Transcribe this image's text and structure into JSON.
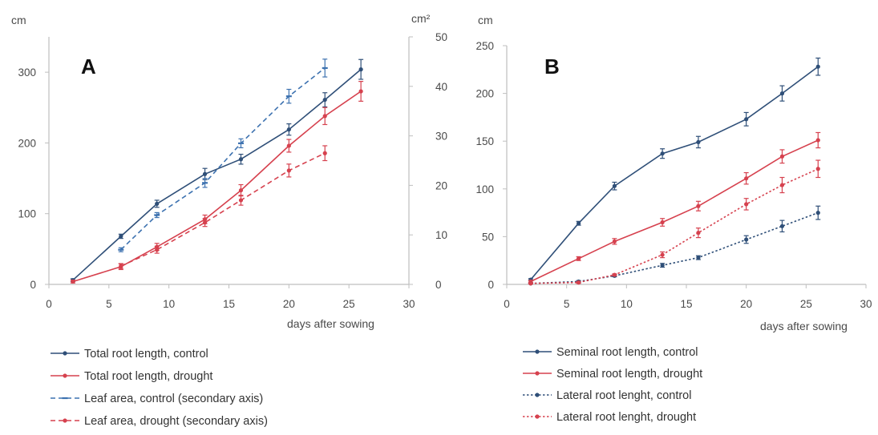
{
  "colors": {
    "control": "#2f4f78",
    "drought": "#d6414e",
    "leaf_control": "#3d72b0",
    "axis": "#bfbfbf",
    "text": "#4a4a4a"
  },
  "chart_data": [
    {
      "type": "line",
      "panel_label": "A",
      "xlabel": "days after sowing",
      "y_unit": "cm",
      "y2_unit": "cm²",
      "xlim": [
        0,
        30
      ],
      "ylim": [
        0,
        350
      ],
      "y2lim": [
        0,
        50
      ],
      "xticks": [
        0,
        5,
        10,
        15,
        20,
        25,
        30
      ],
      "yticks": [
        0,
        100,
        200,
        300
      ],
      "y2ticks": [
        0,
        10,
        20,
        30,
        40,
        50
      ],
      "legend_position": "below",
      "series": [
        {
          "name": "Total root length, control",
          "axis": "primary",
          "style": "solid",
          "color": "#2f4f78",
          "marker": "dot",
          "x": [
            2,
            6,
            9,
            13,
            16,
            20,
            23,
            26
          ],
          "y": [
            6,
            68,
            114,
            156,
            177,
            219,
            261,
            304
          ],
          "err": [
            2,
            3,
            5,
            8,
            7,
            8,
            10,
            14
          ]
        },
        {
          "name": "Total root length, drought",
          "axis": "primary",
          "style": "solid",
          "color": "#d6414e",
          "marker": "dot",
          "x": [
            2,
            6,
            9,
            13,
            16,
            20,
            23,
            26
          ],
          "y": [
            4,
            25,
            53,
            92,
            133,
            196,
            238,
            273
          ],
          "err": [
            2,
            4,
            5,
            6,
            8,
            9,
            12,
            14
          ]
        },
        {
          "name": "Leaf area, control (secondary axis)",
          "axis": "secondary",
          "style": "dashed",
          "color": "#3d72b0",
          "marker": "dash",
          "x": [
            6,
            9,
            13,
            16,
            20,
            23
          ],
          "y": [
            7,
            14,
            20.5,
            28.5,
            38,
            43.7
          ],
          "err": [
            0.4,
            0.5,
            0.9,
            0.9,
            1.4,
            1.8
          ]
        },
        {
          "name": "Leaf area, drought (secondary axis)",
          "axis": "secondary",
          "style": "dashed",
          "color": "#d6414e",
          "marker": "dot",
          "x": [
            6,
            9,
            13,
            16,
            20,
            23
          ],
          "y": [
            3.7,
            7,
            12.5,
            17,
            23,
            26.5
          ],
          "err": [
            0.5,
            0.7,
            0.8,
            1,
            1.3,
            1.5
          ]
        }
      ]
    },
    {
      "type": "line",
      "panel_label": "B",
      "xlabel": "days after sowing",
      "y_unit": "cm",
      "xlim": [
        0,
        30
      ],
      "ylim": [
        0,
        250
      ],
      "xticks": [
        0,
        5,
        10,
        15,
        20,
        25,
        30
      ],
      "yticks": [
        0,
        50,
        100,
        150,
        200,
        250
      ],
      "legend_position": "below",
      "series": [
        {
          "name": "Seminal root length, control",
          "style": "solid",
          "color": "#2f4f78",
          "marker": "dot",
          "x": [
            2,
            6,
            9,
            13,
            16,
            20,
            23,
            26
          ],
          "y": [
            5,
            64,
            103,
            137,
            149,
            173,
            200,
            228
          ],
          "err": [
            1,
            2,
            4,
            5,
            6,
            7,
            8,
            9
          ]
        },
        {
          "name": "Seminal root length, drought",
          "style": "solid",
          "color": "#d6414e",
          "marker": "dot",
          "x": [
            2,
            6,
            9,
            13,
            16,
            20,
            23,
            26
          ],
          "y": [
            3,
            27,
            45,
            65,
            82,
            111,
            134,
            151
          ],
          "err": [
            1,
            2,
            3,
            4,
            5,
            6,
            7,
            8
          ]
        },
        {
          "name": "Lateral root lenght, control",
          "style": "dotted",
          "color": "#2f4f78",
          "marker": "dot",
          "x": [
            2,
            6,
            9,
            13,
            16,
            20,
            23,
            26
          ],
          "y": [
            1,
            3,
            9,
            20,
            28,
            47,
            61,
            75
          ],
          "err": [
            0.5,
            1,
            1,
            2,
            2,
            4,
            6,
            7
          ]
        },
        {
          "name": "Lateral root lenght, drought",
          "style": "dotted",
          "color": "#d6414e",
          "marker": "dot",
          "x": [
            2,
            6,
            9,
            13,
            16,
            20,
            23,
            26
          ],
          "y": [
            1,
            2,
            10,
            31,
            54,
            84,
            104,
            121
          ],
          "err": [
            0.5,
            1,
            1,
            3,
            5,
            6,
            8,
            9
          ]
        }
      ]
    }
  ]
}
